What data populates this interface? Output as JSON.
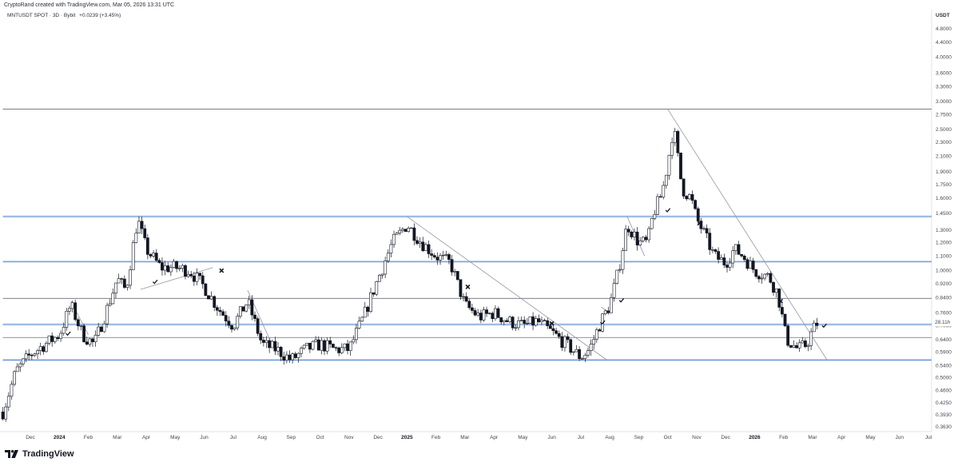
{
  "header": {
    "attribution": "CryptoRand created with TradingView.com, Mar 05, 2026 13:31 UTC",
    "symbol": "MNTUSDT SPOT · 3D · Bybit",
    "change": "+0.0239 (+3.45%)",
    "currency": "USDT"
  },
  "footer": {
    "brand": "TradingView",
    "logo_icon": "tradingview-logo-icon"
  },
  "colors": {
    "up": "#ffffff",
    "down": "#131722",
    "wick": "#131722",
    "blue_level": "#5b8bd4",
    "gray_level": "#6a6d78",
    "trend": "#9598a1"
  },
  "chart_data": {
    "type": "candlestick",
    "y_scale": "log",
    "y_ticks": [
      4.8,
      4.4,
      4.0,
      3.6,
      3.3,
      3.0,
      2.75,
      2.5,
      2.3,
      2.1,
      1.9,
      1.75,
      1.6,
      1.45,
      1.3,
      1.2,
      1.1,
      1.0,
      0.92,
      0.84,
      0.76,
      0.7,
      0.64,
      0.59,
      0.54,
      0.5,
      0.46,
      0.425,
      0.393,
      0.363
    ],
    "y_tick_labels": [
      "4.8000",
      "4.4000",
      "4.0000",
      "3.6000",
      "3.3000",
      "3.0000",
      "2.7500",
      "2.5000",
      "2.3000",
      "2.1000",
      "1.9000",
      "1.7500",
      "1.6000",
      "1.4500",
      "1.3000",
      "1.2000",
      "1.1000",
      "1.0000",
      "0.9200",
      "0.8400",
      "0.7600",
      "0.7000",
      "0.6400",
      "0.5900",
      "0.5400",
      "0.5000",
      "0.4600",
      "0.4250",
      "0.3930",
      "0.3630"
    ],
    "ylim": [
      0.36,
      5.2
    ],
    "x_ticks": [
      {
        "label": "Dec",
        "x": 0
      },
      {
        "label": "2024",
        "x": 1,
        "bold": true
      },
      {
        "label": "Feb",
        "x": 2
      },
      {
        "label": "Mar",
        "x": 3
      },
      {
        "label": "Apr",
        "x": 4
      },
      {
        "label": "May",
        "x": 5
      },
      {
        "label": "Jun",
        "x": 6
      },
      {
        "label": "Jul",
        "x": 7
      },
      {
        "label": "Aug",
        "x": 8
      },
      {
        "label": "Sep",
        "x": 9
      },
      {
        "label": "Oct",
        "x": 10
      },
      {
        "label": "Nov",
        "x": 11
      },
      {
        "label": "Dec",
        "x": 12
      },
      {
        "label": "2025",
        "x": 13,
        "bold": true
      },
      {
        "label": "Feb",
        "x": 14
      },
      {
        "label": "Mar",
        "x": 15
      },
      {
        "label": "Apr",
        "x": 16
      },
      {
        "label": "May",
        "x": 17
      },
      {
        "label": "Jun",
        "x": 18
      },
      {
        "label": "Jul",
        "x": 19
      },
      {
        "label": "Aug",
        "x": 20
      },
      {
        "label": "Sep",
        "x": 21
      },
      {
        "label": "Oct",
        "x": 22
      },
      {
        "label": "Nov",
        "x": 23
      },
      {
        "label": "Dec",
        "x": 24
      },
      {
        "label": "2026",
        "x": 25,
        "bold": true
      },
      {
        "label": "Feb",
        "x": 26
      },
      {
        "label": "Mar",
        "x": 27
      },
      {
        "label": "Apr",
        "x": 28
      },
      {
        "label": "May",
        "x": 29
      },
      {
        "label": "Jun",
        "x": 30
      },
      {
        "label": "Jul",
        "x": 31
      }
    ],
    "xlim": [
      -0.95,
      31
    ],
    "price_path": [
      [
        -0.95,
        0.4
      ],
      [
        -0.5,
        0.52
      ],
      [
        0,
        0.58
      ],
      [
        0.5,
        0.62
      ],
      [
        1.0,
        0.66
      ],
      [
        1.4,
        0.8
      ],
      [
        1.8,
        0.66
      ],
      [
        2.2,
        0.62
      ],
      [
        2.6,
        0.76
      ],
      [
        3.0,
        0.95
      ],
      [
        3.3,
        0.88
      ],
      [
        3.7,
        1.4
      ],
      [
        4.0,
        1.15
      ],
      [
        4.5,
        1.02
      ],
      [
        5.0,
        1.02
      ],
      [
        5.5,
        1.0
      ],
      [
        6.0,
        0.9
      ],
      [
        6.5,
        0.78
      ],
      [
        7.0,
        0.7
      ],
      [
        7.5,
        0.82
      ],
      [
        8.0,
        0.62
      ],
      [
        8.5,
        0.6
      ],
      [
        9.0,
        0.56
      ],
      [
        9.5,
        0.6
      ],
      [
        10.0,
        0.62
      ],
      [
        10.5,
        0.6
      ],
      [
        11.0,
        0.6
      ],
      [
        11.5,
        0.74
      ],
      [
        12.0,
        0.95
      ],
      [
        12.5,
        1.2
      ],
      [
        13.0,
        1.35
      ],
      [
        13.5,
        1.2
      ],
      [
        14.0,
        1.1
      ],
      [
        14.5,
        1.05
      ],
      [
        15.0,
        0.8
      ],
      [
        15.5,
        0.74
      ],
      [
        16.0,
        0.76
      ],
      [
        16.5,
        0.72
      ],
      [
        17.0,
        0.7
      ],
      [
        17.5,
        0.72
      ],
      [
        18.0,
        0.67
      ],
      [
        18.5,
        0.62
      ],
      [
        19.0,
        0.57
      ],
      [
        19.3,
        0.6
      ],
      [
        19.7,
        0.72
      ],
      [
        20.0,
        0.8
      ],
      [
        20.3,
        1.0
      ],
      [
        20.6,
        1.35
      ],
      [
        21.0,
        1.2
      ],
      [
        21.3,
        1.2
      ],
      [
        21.5,
        1.45
      ],
      [
        21.8,
        1.65
      ],
      [
        22.0,
        2.0
      ],
      [
        22.2,
        2.55
      ],
      [
        22.5,
        1.7
      ],
      [
        22.8,
        1.6
      ],
      [
        23.0,
        1.4
      ],
      [
        23.3,
        1.25
      ],
      [
        23.6,
        1.1
      ],
      [
        24.0,
        1.05
      ],
      [
        24.3,
        1.15
      ],
      [
        24.6,
        1.1
      ],
      [
        25.0,
        1.0
      ],
      [
        25.5,
        0.96
      ],
      [
        25.8,
        0.86
      ],
      [
        26.1,
        0.64
      ],
      [
        26.5,
        0.6
      ],
      [
        26.8,
        0.62
      ],
      [
        27.0,
        0.68
      ],
      [
        27.2,
        0.72
      ]
    ],
    "horizontal_levels": [
      {
        "price": 2.85,
        "style": "gray",
        "x_from": -0.95
      },
      {
        "price": 1.42,
        "style": "blue",
        "x_from": -0.95
      },
      {
        "price": 1.06,
        "style": "blue",
        "x_from": -0.95
      },
      {
        "price": 0.835,
        "style": "gray",
        "x_from": -0.95
      },
      {
        "price": 0.705,
        "style": "blue",
        "x_from": -0.95
      },
      {
        "price": 0.648,
        "style": "gray",
        "x_from": -0.95
      },
      {
        "price": 0.56,
        "style": "blue",
        "x_from": -0.95
      }
    ],
    "trend_lines": [
      {
        "from": [
          13.0,
          1.42
        ],
        "to": [
          19.9,
          0.56
        ]
      },
      {
        "from": [
          22.0,
          2.85
        ],
        "to": [
          27.5,
          0.56
        ]
      },
      {
        "from": [
          3.8,
          0.885
        ],
        "to": [
          6.3,
          1.02
        ]
      },
      {
        "from": [
          1.4,
          0.82
        ],
        "to": [
          2.0,
          0.66
        ]
      },
      {
        "from": [
          7.5,
          0.88
        ],
        "to": [
          8.3,
          0.63
        ]
      },
      {
        "from": [
          20.6,
          1.42
        ],
        "to": [
          21.2,
          1.1
        ]
      },
      {
        "from": [
          19.7,
          0.79
        ],
        "to": [
          20.0,
          0.76
        ]
      }
    ],
    "markers": [
      {
        "type": "check",
        "x": 1.3,
        "price": 0.665
      },
      {
        "type": "check",
        "x": 4.3,
        "price": 0.93
      },
      {
        "type": "cross",
        "x": 6.6,
        "price": 1.0
      },
      {
        "type": "cross",
        "x": 15.1,
        "price": 0.9
      },
      {
        "type": "cross",
        "x": 18.0,
        "price": 0.71
      },
      {
        "type": "check",
        "x": 19.75,
        "price": 0.715
      },
      {
        "type": "check",
        "x": 20.4,
        "price": 0.825
      },
      {
        "type": "check",
        "x": 22.0,
        "price": 1.48
      },
      {
        "type": "cross",
        "x": 23.1,
        "price": 1.36
      },
      {
        "type": "cross",
        "x": 25.9,
        "price": 0.82
      },
      {
        "type": "check",
        "x": 27.4,
        "price": 0.7
      }
    ],
    "last_price": {
      "price": 0.716,
      "label": "28.11h"
    }
  }
}
